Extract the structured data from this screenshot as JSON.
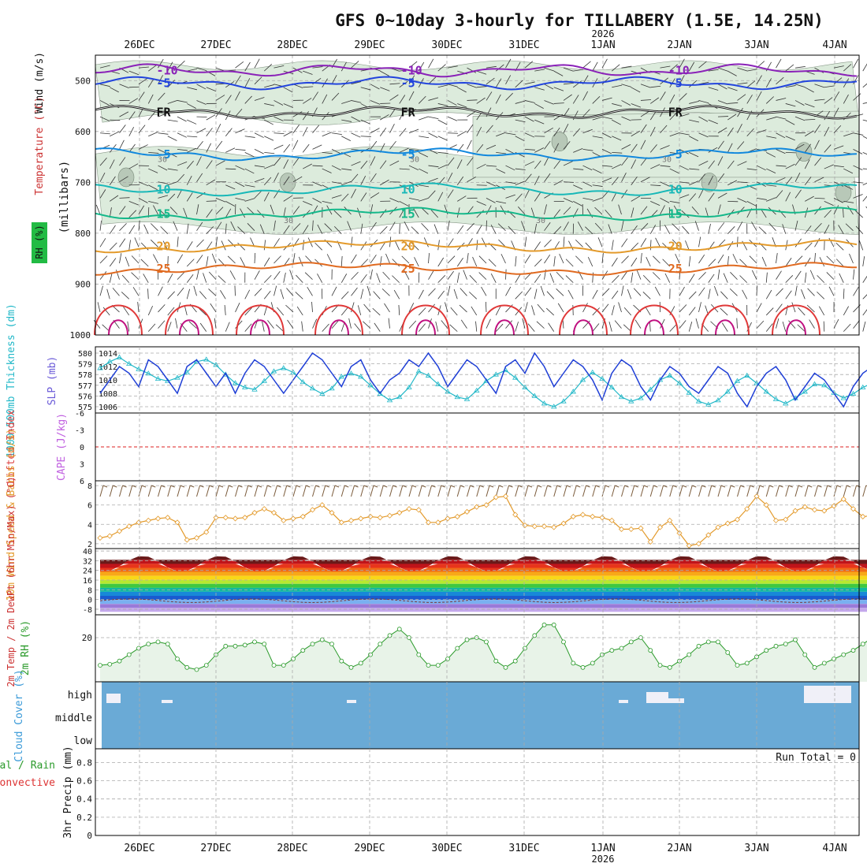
{
  "chart_data": {
    "type": "meteogram",
    "title": "GFS 0~10day 3-hourly for TILLABERY (1.5E, 14.25N)",
    "year_label": "2026",
    "dates": [
      "26DEC",
      "27DEC",
      "28DEC",
      "29DEC",
      "30DEC",
      "31DEC",
      "1JAN",
      "2JAN",
      "3JAN",
      "4JAN"
    ],
    "colors": {
      "rh_fill": "#dcebdc",
      "rh_fill_dark": "#b8c8b8",
      "wind_barb": "#333333",
      "slp": "#1f3fd6",
      "thickness": "#22b8c8",
      "li_zero": "#dd2222",
      "wind10m": "#e39a2b",
      "rh2m": "#2a9a2a",
      "cloud": "#6aaad6",
      "grid": "#aaaaaa"
    },
    "panels": {
      "upper_air": {
        "ylabel": "(millibars)",
        "side_labels": [
          "RH (%)",
          "Temperature (°C)",
          "Wind (m/s)"
        ],
        "yticks": [
          "500",
          "600",
          "700",
          "800",
          "900",
          "1000"
        ],
        "isotherms": [
          {
            "label": "-10",
            "level": 480,
            "color": "#8a22b8"
          },
          {
            "label": "-5",
            "level": 505,
            "color": "#2244dd"
          },
          {
            "label": "FR",
            "level": 562,
            "color": "#111111"
          },
          {
            "label": "-5",
            "level": 645,
            "color": "#1188dd"
          },
          {
            "label": "10",
            "level": 714,
            "color": "#18b8b8"
          },
          {
            "label": "15",
            "level": 762,
            "color": "#14b88a"
          },
          {
            "label": "20",
            "level": 826,
            "color": "#e39a2b"
          },
          {
            "label": "25",
            "level": 870,
            "color": "#e06a20"
          }
        ],
        "rh_labels": [
          "30",
          "30",
          "30",
          "30",
          "30"
        ]
      },
      "slp_thickness": {
        "ylabel_left": "1000-500mb Thickness (dm)",
        "ylabel_right": "SLP (mb)",
        "thickness_ticks": [
          "580",
          "579",
          "578",
          "577",
          "576",
          "575"
        ],
        "slp_ticks": [
          "1014",
          "1012",
          "1010",
          "1008",
          "1006"
        ],
        "slp_values": [
          1008,
          1010,
          1012,
          1011,
          1009,
          1013,
          1012,
          1010,
          1008,
          1012,
          1013,
          1011,
          1009,
          1011,
          1008,
          1011,
          1013,
          1012,
          1010,
          1008,
          1010,
          1012,
          1014,
          1013,
          1011,
          1009,
          1012,
          1013,
          1010,
          1008,
          1010,
          1011,
          1013,
          1012,
          1014,
          1012,
          1009,
          1011,
          1013,
          1012,
          1010,
          1008,
          1012,
          1013,
          1011,
          1014,
          1012,
          1009,
          1011,
          1013,
          1012,
          1010,
          1007,
          1011,
          1013,
          1012,
          1009,
          1007,
          1010,
          1012,
          1011,
          1009,
          1008,
          1010,
          1012,
          1011,
          1008,
          1006,
          1009,
          1011,
          1012,
          1010,
          1007,
          1009,
          1011,
          1010,
          1008,
          1006,
          1009,
          1011,
          1012,
          1010,
          1008,
          1010,
          1011,
          1009,
          1008,
          1011
        ],
        "thickness_values": [
          578.6,
          579.2,
          579.6,
          579.0,
          578.5,
          578.1,
          577.6,
          577.4,
          577.7,
          578.2,
          579.2,
          579.4,
          578.9,
          578.0,
          577.2,
          576.8,
          576.6,
          577.4,
          578.3,
          578.6,
          578.2,
          577.3,
          576.7,
          576.2,
          576.7,
          577.8,
          578.1,
          577.8,
          577.0,
          576.2,
          575.6,
          575.9,
          576.8,
          578.3,
          577.9,
          577.1,
          576.4,
          575.9,
          575.7,
          576.5,
          577.4,
          578.0,
          578.4,
          577.7,
          576.8,
          576.0,
          575.3,
          575.0,
          575.5,
          576.4,
          577.5,
          578.2,
          577.6,
          576.8,
          575.9,
          575.5,
          575.8,
          576.6,
          577.5,
          577.9,
          577.2,
          576.3,
          575.5,
          575.2,
          575.6,
          576.4,
          577.4,
          577.9,
          577.2,
          576.4,
          575.7,
          575.3,
          575.8,
          576.4,
          577.1,
          577.0,
          576.3,
          575.8,
          576.2,
          576.8,
          577.2,
          576.6,
          575.9,
          576.4,
          577.1,
          577.6,
          576.8,
          575.4
        ]
      },
      "cape_li": {
        "ylabel_left": "Lifted Index",
        "ylabel_right": "CAPE (J/kg)",
        "li_ticks": [
          "-6",
          "-3",
          "0",
          "3",
          "6"
        ]
      },
      "wind10m": {
        "ylabel": "10m Wind Speed & Barbs (m/s)",
        "yticks": [
          "8",
          "6",
          "4",
          "2"
        ],
        "values": [
          2.6,
          2.8,
          3.3,
          3.8,
          4.2,
          4.4,
          4.6,
          4.7,
          4.2,
          2.4,
          2.6,
          3.2,
          4.7,
          4.7,
          4.6,
          4.7,
          5.2,
          5.6,
          5.2,
          4.4,
          4.6,
          4.8,
          5.5,
          6.0,
          5.2,
          4.2,
          4.4,
          4.6,
          4.8,
          4.7,
          4.9,
          5.2,
          5.6,
          5.5,
          4.2,
          4.2,
          4.6,
          4.8,
          5.3,
          5.8,
          6.0,
          6.8,
          6.9,
          5.0,
          3.9,
          3.8,
          3.8,
          3.7,
          4.1,
          4.8,
          5.0,
          4.8,
          4.7,
          4.4,
          3.5,
          3.5,
          3.6,
          2.2,
          3.7,
          4.4,
          3.1,
          1.8,
          2.0,
          2.9,
          3.7,
          4.1,
          4.5,
          5.6,
          6.9,
          6.0,
          4.4,
          4.5,
          5.4,
          5.8,
          5.5,
          5.4,
          5.9,
          6.6,
          5.6,
          4.8,
          4.9,
          5.6,
          6.0,
          5.2,
          5.1,
          5.5,
          5.0,
          5.9
        ]
      },
      "temp": {
        "ylabel": "2m Temp / 2m DewPt (6hr Min/Max) (°C)",
        "yticks": [
          "40",
          "32",
          "24",
          "16",
          "8",
          "0",
          "-8"
        ],
        "max_temp": 36,
        "min_temp": 23,
        "dewpoint": -1,
        "band_colors": [
          "#6a1a1a",
          "#c0141a",
          "#e8351c",
          "#f06a18",
          "#f8a818",
          "#f8d818",
          "#b8e830",
          "#40c840",
          "#10b8a0",
          "#1888d8",
          "#1a5ad0",
          "#7ab0f0",
          "#9a7ad8",
          "#c4a8ec"
        ]
      },
      "rh2m": {
        "ylabel": "2m RH (%)",
        "yticks": [
          "20"
        ],
        "values": [
          7,
          7.5,
          9,
          12,
          15,
          17,
          18,
          17,
          10,
          6,
          5,
          7,
          12,
          16,
          16,
          16.5,
          18,
          17,
          7,
          7,
          10,
          14,
          17,
          19,
          17,
          9,
          6,
          8,
          12,
          17,
          21,
          24,
          20,
          12,
          7,
          7,
          10,
          15,
          19,
          20,
          18,
          9,
          6,
          9,
          15,
          21,
          26,
          26,
          18,
          8,
          6,
          8,
          12,
          14,
          15,
          18,
          20,
          14,
          7,
          6,
          9,
          12,
          16,
          18,
          18,
          13,
          7,
          8,
          11,
          14,
          16,
          17,
          19,
          12,
          6,
          8,
          10,
          12,
          14,
          17,
          20,
          14,
          7,
          9,
          12,
          15,
          18,
          21
        ]
      },
      "cloud": {
        "ylabel": "Cloud Cover (%)",
        "labels": [
          "high",
          "middle",
          "low"
        ]
      },
      "precip": {
        "ylabel": "3hr Precip (mm)",
        "side_labels": [
          "Total / Rain",
          "Convective"
        ],
        "yticks": [
          "0.8",
          "0.6",
          "0.4",
          "0.2",
          "0"
        ],
        "run_total": "Run Total = 0"
      }
    }
  }
}
